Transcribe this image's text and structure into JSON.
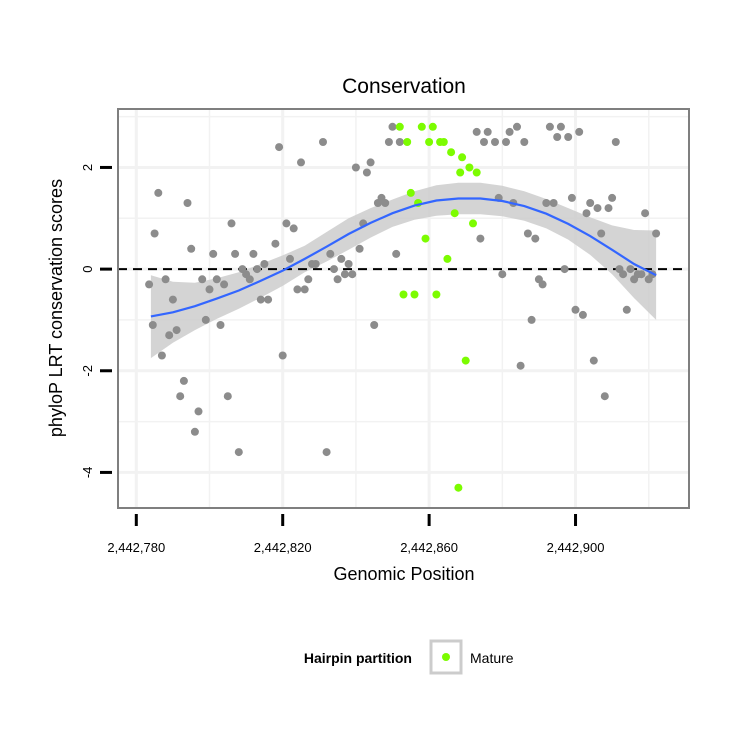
{
  "chart_data": {
    "type": "scatter",
    "title": "Conservation",
    "xlabel": "Genomic Position",
    "ylabel": "phyloP LRT conservation scores",
    "xlim": [
      2442775,
      2442931
    ],
    "ylim": [
      -4.7,
      3.15
    ],
    "x_ticks": [
      2442780,
      2442820,
      2442860,
      2442900
    ],
    "x_tick_labels": [
      "2,442,780",
      "2,442,820",
      "2,442,860",
      "2,442,900"
    ],
    "y_ticks": [
      -4,
      -2,
      0,
      2
    ],
    "y_tick_labels": [
      "-4",
      "-2",
      "0",
      "2"
    ],
    "grid": true,
    "reference_line": {
      "y": 0,
      "style": "dashed"
    },
    "legend": {
      "title": "Hairpin partition",
      "placement": "bottom",
      "entries": [
        {
          "label": "Mature",
          "color": "#7cfc00"
        }
      ]
    },
    "colors": {
      "other": "#8c8c8c",
      "mature": "#7cfc00",
      "smooth_line": "#3366ff",
      "confidence_band": "#cccccc"
    },
    "series": [
      {
        "name": "",
        "color": "#8c8c8c",
        "points": [
          [
            2442783.5,
            -0.3
          ],
          [
            2442784.5,
            -1.1
          ],
          [
            2442785,
            0.7
          ],
          [
            2442786,
            1.5
          ],
          [
            2442787,
            -1.7
          ],
          [
            2442788,
            -0.2
          ],
          [
            2442789,
            -1.3
          ],
          [
            2442790,
            -0.6
          ],
          [
            2442791,
            -1.2
          ],
          [
            2442792,
            -2.5
          ],
          [
            2442793,
            -2.2
          ],
          [
            2442794,
            1.3
          ],
          [
            2442795,
            0.4
          ],
          [
            2442796,
            -3.2
          ],
          [
            2442797,
            -2.8
          ],
          [
            2442798,
            -0.2
          ],
          [
            2442799,
            -1.0
          ],
          [
            2442800,
            -0.4
          ],
          [
            2442801,
            0.3
          ],
          [
            2442802,
            -0.2
          ],
          [
            2442803,
            -1.1
          ],
          [
            2442804,
            -0.3
          ],
          [
            2442805,
            -2.5
          ],
          [
            2442806,
            0.9
          ],
          [
            2442807,
            0.3
          ],
          [
            2442808,
            -3.6
          ],
          [
            2442809,
            0.0
          ],
          [
            2442810,
            -0.1
          ],
          [
            2442811,
            -0.2
          ],
          [
            2442812,
            0.3
          ],
          [
            2442813,
            0.0
          ],
          [
            2442814,
            -0.6
          ],
          [
            2442815,
            0.1
          ],
          [
            2442816,
            -0.6
          ],
          [
            2442818,
            0.5
          ],
          [
            2442819,
            2.4
          ],
          [
            2442820,
            -1.7
          ],
          [
            2442821,
            0.9
          ],
          [
            2442822,
            0.2
          ],
          [
            2442823,
            0.8
          ],
          [
            2442824,
            -0.4
          ],
          [
            2442825,
            2.1
          ],
          [
            2442826,
            -0.4
          ],
          [
            2442827,
            -0.2
          ],
          [
            2442828,
            0.1
          ],
          [
            2442829,
            0.1
          ],
          [
            2442831,
            2.5
          ],
          [
            2442832,
            -3.6
          ],
          [
            2442833,
            0.3
          ],
          [
            2442834,
            0.0
          ],
          [
            2442835,
            -0.2
          ],
          [
            2442836,
            0.2
          ],
          [
            2442837,
            -0.1
          ],
          [
            2442838,
            0.1
          ],
          [
            2442839,
            -0.1
          ],
          [
            2442840,
            2.0
          ],
          [
            2442841,
            0.4
          ],
          [
            2442842,
            0.9
          ],
          [
            2442843,
            1.9
          ],
          [
            2442844,
            2.1
          ],
          [
            2442845,
            -1.1
          ],
          [
            2442846,
            1.3
          ],
          [
            2442847,
            1.4
          ],
          [
            2442848,
            1.3
          ],
          [
            2442849,
            2.5
          ],
          [
            2442850,
            2.8
          ],
          [
            2442851,
            0.3
          ],
          [
            2442852,
            2.5
          ],
          [
            2442873,
            2.7
          ],
          [
            2442874,
            0.6
          ],
          [
            2442875,
            2.5
          ],
          [
            2442876,
            2.7
          ],
          [
            2442878,
            2.5
          ],
          [
            2442879,
            1.4
          ],
          [
            2442880,
            -0.1
          ],
          [
            2442881,
            2.5
          ],
          [
            2442882,
            2.7
          ],
          [
            2442883,
            1.3
          ],
          [
            2442884,
            2.8
          ],
          [
            2442885,
            -1.9
          ],
          [
            2442886,
            2.5
          ],
          [
            2442887,
            0.7
          ],
          [
            2442888,
            -1.0
          ],
          [
            2442889,
            0.6
          ],
          [
            2442890,
            -0.2
          ],
          [
            2442891,
            -0.3
          ],
          [
            2442892,
            1.3
          ],
          [
            2442893,
            2.8
          ],
          [
            2442894,
            1.3
          ],
          [
            2442895,
            2.6
          ],
          [
            2442896,
            2.8
          ],
          [
            2442897,
            0.0
          ],
          [
            2442898,
            2.6
          ],
          [
            2442899,
            1.4
          ],
          [
            2442900,
            -0.8
          ],
          [
            2442901,
            2.7
          ],
          [
            2442902,
            -0.9
          ],
          [
            2442903,
            1.1
          ],
          [
            2442904,
            1.3
          ],
          [
            2442905,
            -1.8
          ],
          [
            2442906,
            1.2
          ],
          [
            2442907,
            0.7
          ],
          [
            2442908,
            -2.5
          ],
          [
            2442909,
            1.2
          ],
          [
            2442910,
            1.4
          ],
          [
            2442911,
            2.5
          ],
          [
            2442912,
            0.0
          ],
          [
            2442913,
            -0.1
          ],
          [
            2442914,
            -0.8
          ],
          [
            2442915,
            0.0
          ],
          [
            2442916,
            -0.2
          ],
          [
            2442917,
            -0.1
          ],
          [
            2442918,
            -0.1
          ],
          [
            2442919,
            1.1
          ],
          [
            2442920,
            -0.2
          ],
          [
            2442921,
            -0.1
          ],
          [
            2442922,
            0.7
          ]
        ]
      },
      {
        "name": "Mature",
        "color": "#7cfc00",
        "points": [
          [
            2442852,
            2.8
          ],
          [
            2442853,
            -0.5
          ],
          [
            2442854,
            2.5
          ],
          [
            2442855,
            1.5
          ],
          [
            2442856,
            -0.5
          ],
          [
            2442857,
            1.3
          ],
          [
            2442858,
            2.8
          ],
          [
            2442859,
            0.6
          ],
          [
            2442860,
            2.5
          ],
          [
            2442861,
            2.8
          ],
          [
            2442862,
            -0.5
          ],
          [
            2442863,
            2.5
          ],
          [
            2442864,
            2.5
          ],
          [
            2442865,
            0.2
          ],
          [
            2442866,
            2.3
          ],
          [
            2442867,
            1.1
          ],
          [
            2442868,
            -4.3
          ],
          [
            2442868.5,
            1.9
          ],
          [
            2442869,
            2.2
          ],
          [
            2442870,
            -1.8
          ],
          [
            2442871,
            2.0
          ],
          [
            2442872,
            0.9
          ],
          [
            2442873,
            1.9
          ]
        ]
      }
    ],
    "smooth_fit": {
      "x": [
        2442784,
        2442790,
        2442796,
        2442802,
        2442808,
        2442814,
        2442820,
        2442826,
        2442832,
        2442838,
        2442844,
        2442850,
        2442856,
        2442862,
        2442868,
        2442874,
        2442880,
        2442886,
        2442892,
        2442898,
        2442904,
        2442910,
        2442916,
        2442922
      ],
      "y": [
        -0.93,
        -0.85,
        -0.73,
        -0.58,
        -0.42,
        -0.23,
        -0.03,
        0.2,
        0.44,
        0.69,
        0.91,
        1.1,
        1.25,
        1.35,
        1.39,
        1.39,
        1.34,
        1.24,
        1.09,
        0.89,
        0.65,
        0.38,
        0.1,
        -0.12
      ],
      "lower": [
        -1.75,
        -1.45,
        -1.2,
        -0.98,
        -0.78,
        -0.56,
        -0.33,
        -0.06,
        0.15,
        0.38,
        0.62,
        0.83,
        0.97,
        1.05,
        1.08,
        1.08,
        1.04,
        0.95,
        0.8,
        0.58,
        0.28,
        -0.1,
        -0.57,
        -1.0
      ],
      "upper": [
        -0.12,
        -0.25,
        -0.27,
        -0.18,
        -0.06,
        0.1,
        0.27,
        0.46,
        0.73,
        1.0,
        1.2,
        1.37,
        1.53,
        1.65,
        1.7,
        1.7,
        1.64,
        1.53,
        1.38,
        1.2,
        1.02,
        0.86,
        0.77,
        0.76
      ]
    }
  }
}
